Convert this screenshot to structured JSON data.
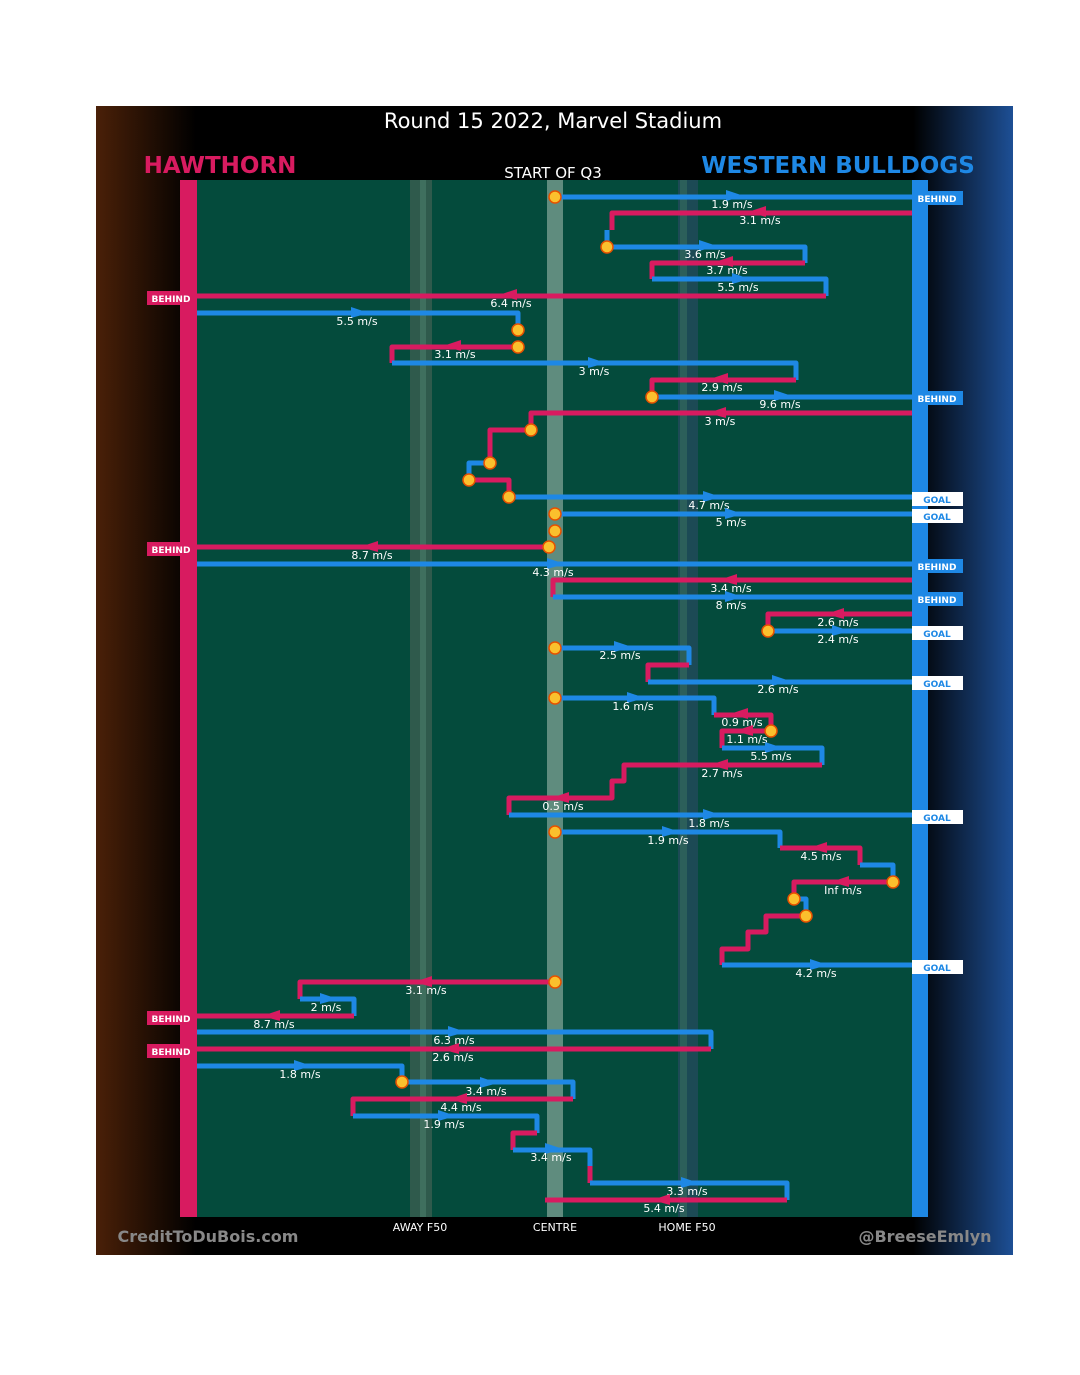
{
  "header": {
    "title": "Round 15 2022, Marvel Stadium",
    "home_team": "HAWTHORN",
    "away_team": "WESTERN BULLDOGS",
    "period": "START OF Q3"
  },
  "speeds": [
    "1.9 m/s",
    "3.1 m/s",
    "3.6 m/s",
    "3.7 m/s",
    "5.5 m/s",
    "6.4 m/s",
    "5.5 m/s",
    "3.1 m/s",
    "3 m/s",
    "2.9 m/s",
    "9.6 m/s",
    "3 m/s",
    "4.7 m/s",
    "5 m/s",
    "8.7 m/s",
    "4.3 m/s",
    "3.4 m/s",
    "8 m/s",
    "2.6 m/s",
    "2.4 m/s",
    "2.5 m/s",
    "2.6 m/s",
    "1.6 m/s",
    "0.9 m/s",
    "1.1 m/s",
    "5.5 m/s",
    "2.7 m/s",
    "0.5 m/s",
    "1.8 m/s",
    "1.9 m/s",
    "4.5 m/s",
    "Inf m/s",
    "4.2 m/s",
    "3.1 m/s",
    "2 m/s",
    "8.7 m/s",
    "6.3 m/s",
    "2.6 m/s",
    "1.8 m/s",
    "3.4 m/s",
    "4.4 m/s",
    "1.9 m/s",
    "3.4 m/s",
    "3.3 m/s",
    "5.4 m/s"
  ],
  "outcomes": [
    "BEHIND",
    "BEHIND",
    "BEHIND",
    "GOAL",
    "GOAL",
    "BEHIND",
    "BEHIND",
    "BEHIND",
    "GOAL",
    "GOAL",
    "GOAL",
    "GOAL",
    "BEHIND",
    "BEHIND"
  ],
  "zones": [
    "AWAY F50",
    "CENTRE",
    "HOME F50"
  ],
  "footer": {
    "left": "CreditToDuBois.com",
    "right": "@BreeseEmlyn"
  }
}
